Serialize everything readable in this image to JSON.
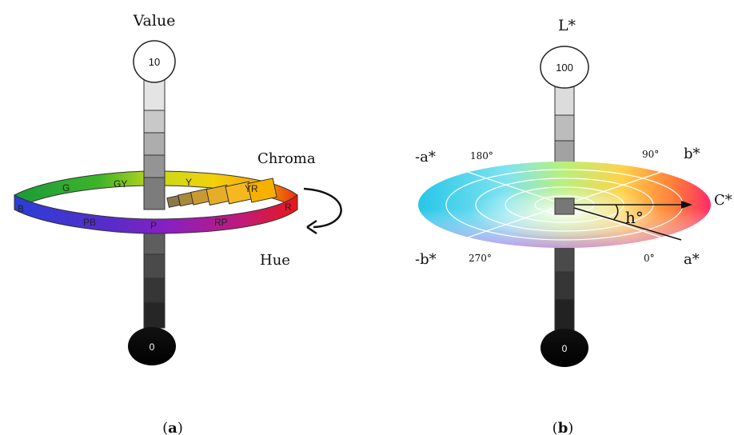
{
  "panel_a": {
    "caption_open": "(",
    "caption_letter": "a",
    "caption_close": ")",
    "value_title": "Value",
    "top_value": "10",
    "bottom_value": "0",
    "chroma_label": "Chroma",
    "hue_label": "Hue",
    "hue_labels": [
      "G",
      "GY",
      "Y",
      "YR",
      "R",
      "RP",
      "P",
      "PB",
      "B"
    ]
  },
  "panel_b": {
    "caption_open": "(",
    "caption_letter": "b",
    "caption_close": ")",
    "lstar_title": "L*",
    "top_value": "100",
    "bottom_value": "0",
    "neg_a": "-a*",
    "pos_b": "b*",
    "neg_b": "-b*",
    "pos_a": "a*",
    "chroma": "C*",
    "hue_angle": "h°",
    "deg_180": "180°",
    "deg_90": "90°",
    "deg_270": "270°",
    "deg_0": "0°"
  }
}
